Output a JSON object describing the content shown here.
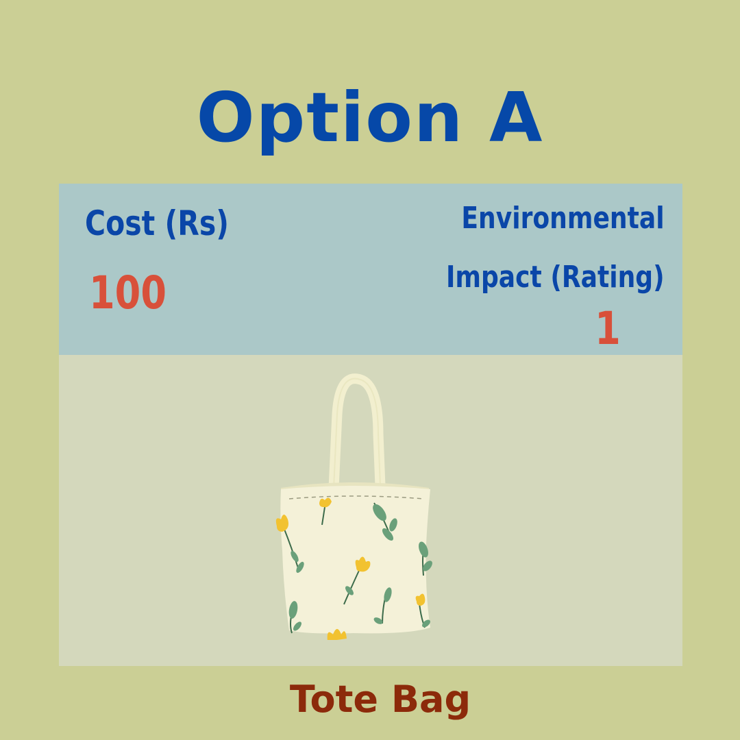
{
  "title": "Option A",
  "info": {
    "cost_label": "Cost (Rs)",
    "cost_value": "100",
    "env_label_line1": "Environmental",
    "env_label_line2": "Impact (Rating)",
    "env_value": "1"
  },
  "product": {
    "name": "Tote Bag",
    "icon": "tote-bag-illustration"
  },
  "colors": {
    "background": "#cbcf95",
    "title": "#0648a8",
    "panel": "#abc8c8",
    "value": "#d8503a",
    "caption": "#8c2a0a"
  }
}
